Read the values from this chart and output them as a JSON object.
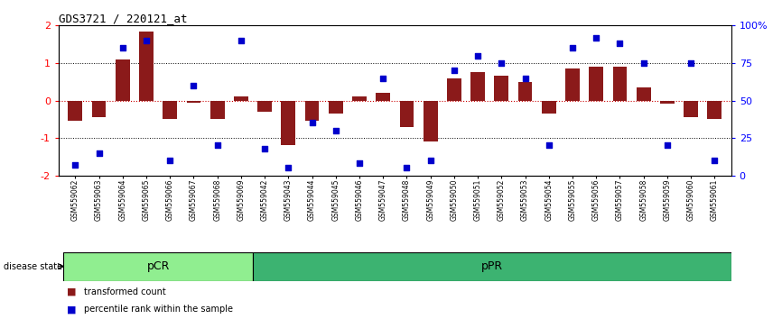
{
  "title": "GDS3721 / 220121_at",
  "samples": [
    "GSM559062",
    "GSM559063",
    "GSM559064",
    "GSM559065",
    "GSM559066",
    "GSM559067",
    "GSM559068",
    "GSM559069",
    "GSM559042",
    "GSM559043",
    "GSM559044",
    "GSM559045",
    "GSM559046",
    "GSM559047",
    "GSM559048",
    "GSM559049",
    "GSM559050",
    "GSM559051",
    "GSM559052",
    "GSM559053",
    "GSM559054",
    "GSM559055",
    "GSM559056",
    "GSM559057",
    "GSM559058",
    "GSM559059",
    "GSM559060",
    "GSM559061"
  ],
  "bar_values": [
    -0.55,
    -0.45,
    1.1,
    1.85,
    -0.5,
    -0.05,
    -0.5,
    0.12,
    -0.3,
    -1.2,
    -0.55,
    -0.35,
    0.1,
    0.2,
    -0.7,
    -1.1,
    0.6,
    0.75,
    0.65,
    0.5,
    -0.35,
    0.85,
    0.9,
    0.9,
    0.35,
    -0.08,
    -0.45,
    -0.5
  ],
  "dot_values": [
    7,
    15,
    85,
    90,
    10,
    60,
    20,
    90,
    18,
    5,
    35,
    30,
    8,
    65,
    5,
    10,
    70,
    80,
    75,
    65,
    20,
    85,
    92,
    88,
    75,
    20,
    75,
    10
  ],
  "pCR_count": 8,
  "pPR_count": 20,
  "bar_color": "#8B1A1A",
  "dot_color": "#0000CC",
  "bar_label": "transformed count",
  "dot_label": "percentile rank within the sample",
  "ylim": [
    -2,
    2
  ],
  "yticks": [
    -2,
    -1,
    0,
    1,
    2
  ],
  "right_yticks": [
    0,
    25,
    50,
    75,
    100
  ],
  "right_ylabels": [
    "0",
    "25",
    "50",
    "75",
    "100%"
  ],
  "dotted_lines": [
    1.0,
    -1.0
  ],
  "zero_line_color": "#CC0000",
  "pCR_color": "#90EE90",
  "pPR_color": "#3CB371",
  "disease_state_label": "disease state"
}
